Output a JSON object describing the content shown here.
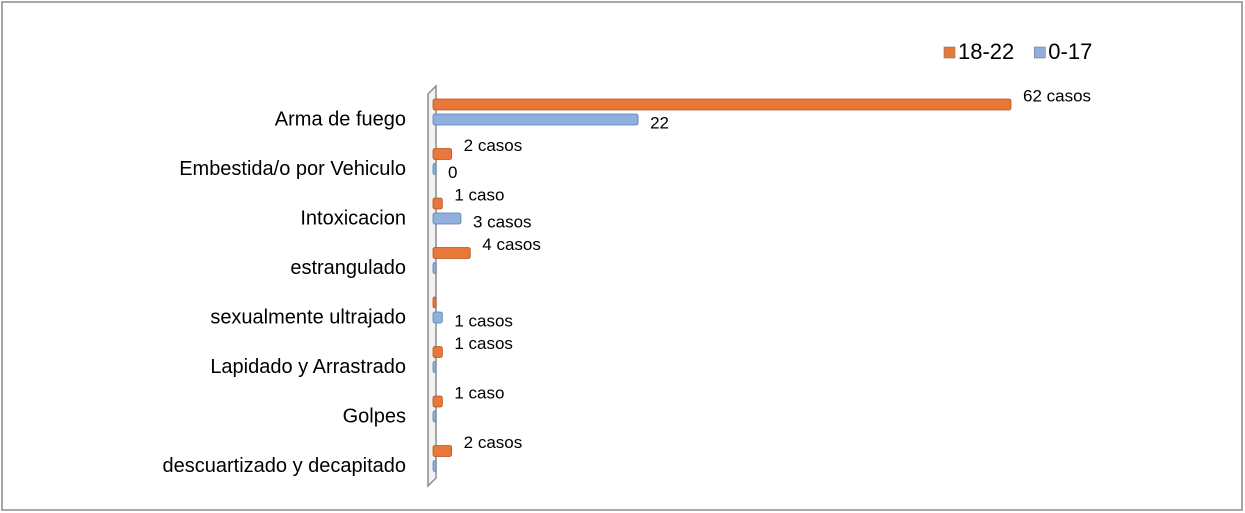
{
  "chart_data": {
    "type": "bar",
    "orientation": "horizontal",
    "categories": [
      "Arma de fuego",
      "Embestida/o por Vehiculo",
      "Intoxicacion",
      "estrangulado",
      "sexualmente ultrajado",
      "Lapidado y Arrastrado",
      "Golpes",
      "descuartizado y decapitado"
    ],
    "series": [
      {
        "name": "18-22",
        "color": "#e8783a",
        "values": [
          62,
          2,
          1,
          4,
          0,
          1,
          1,
          2
        ],
        "value_labels": [
          "62 casos",
          "2 casos",
          "1 caso",
          "4 casos",
          null,
          "1 casos",
          "1 caso",
          "2 casos"
        ]
      },
      {
        "name": "0-17",
        "color": "#8fb0dc",
        "values": [
          22,
          0,
          3,
          0,
          1,
          0,
          0,
          0
        ],
        "value_labels": [
          "22",
          "0",
          "3 casos",
          null,
          "1 casos",
          null,
          null,
          null
        ]
      }
    ],
    "legend": "top-right"
  }
}
